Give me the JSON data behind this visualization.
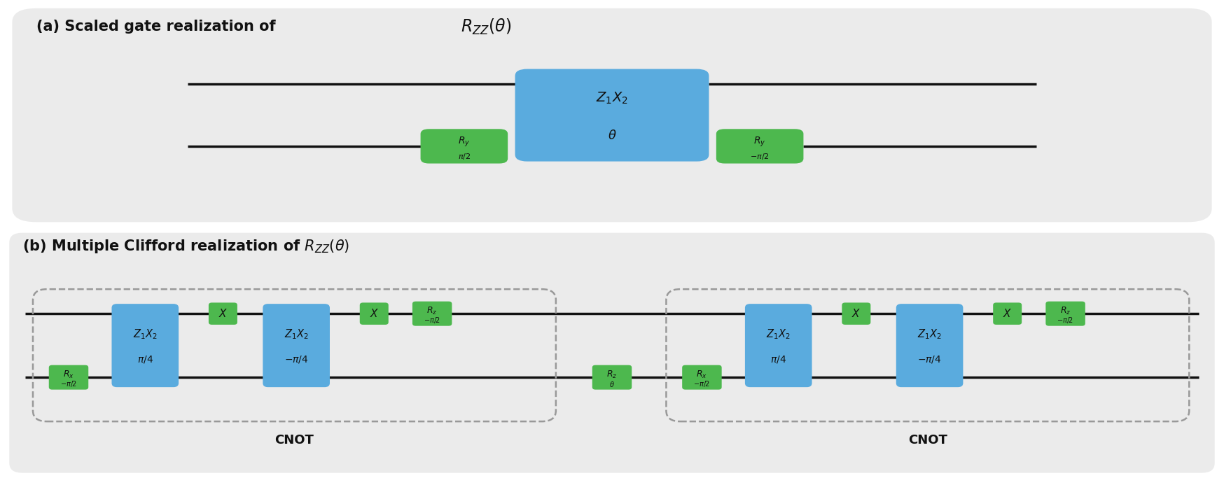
{
  "bg_color": "#ebebeb",
  "blue_color": "#5aabde",
  "green_color": "#4db84e",
  "wire_color": "#111111",
  "text_color": "#111111",
  "title_a": "(a) Scaled gate realization of",
  "title_a_math": "$R_{ZZ}(\\theta)$",
  "title_b": "(b) Multiple Clifford realization of $R_{ZZ}(\\theta)$",
  "cnot_label": "CNOT"
}
